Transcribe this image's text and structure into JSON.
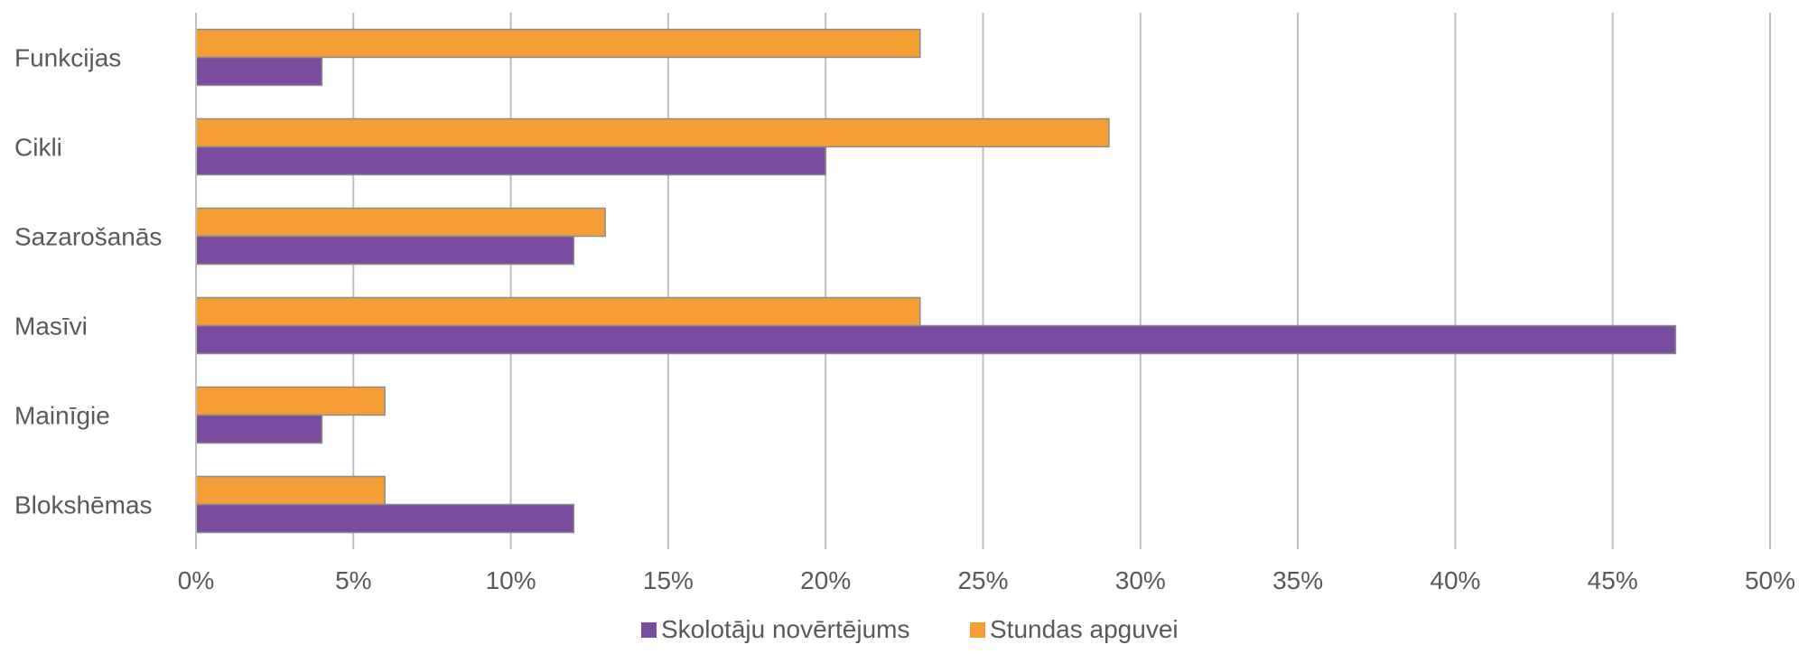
{
  "chart_data": {
    "type": "bar",
    "orientation": "horizontal",
    "categories": [
      "Funkcijas",
      "Cikli",
      "Sazarošanās",
      "Masīvi",
      "Mainīgie",
      "Blokshēmas"
    ],
    "series": [
      {
        "name": "Stundas apguvei",
        "color": "#F59E35",
        "values": [
          23,
          29,
          13,
          23,
          6,
          6
        ]
      },
      {
        "name": "Skolotāju novērtējums",
        "color": "#7A4CA0",
        "values": [
          4,
          20,
          12,
          47,
          4,
          12
        ]
      }
    ],
    "x_ticks": [
      "0%",
      "5%",
      "10%",
      "15%",
      "20%",
      "25%",
      "30%",
      "35%",
      "40%",
      "45%",
      "50%"
    ],
    "xlim": [
      0,
      50
    ],
    "grid": "vertical",
    "legend": {
      "position": "bottom",
      "entries": [
        {
          "label": "Skolotāju novērtējums",
          "color": "#7A4CA0"
        },
        {
          "label": "Stundas apguvei",
          "color": "#F59E35"
        }
      ]
    },
    "gridline_color": "#BFBFBF",
    "bar_outline_color": "#8C8C8C",
    "title": "",
    "xlabel": "",
    "ylabel": ""
  }
}
